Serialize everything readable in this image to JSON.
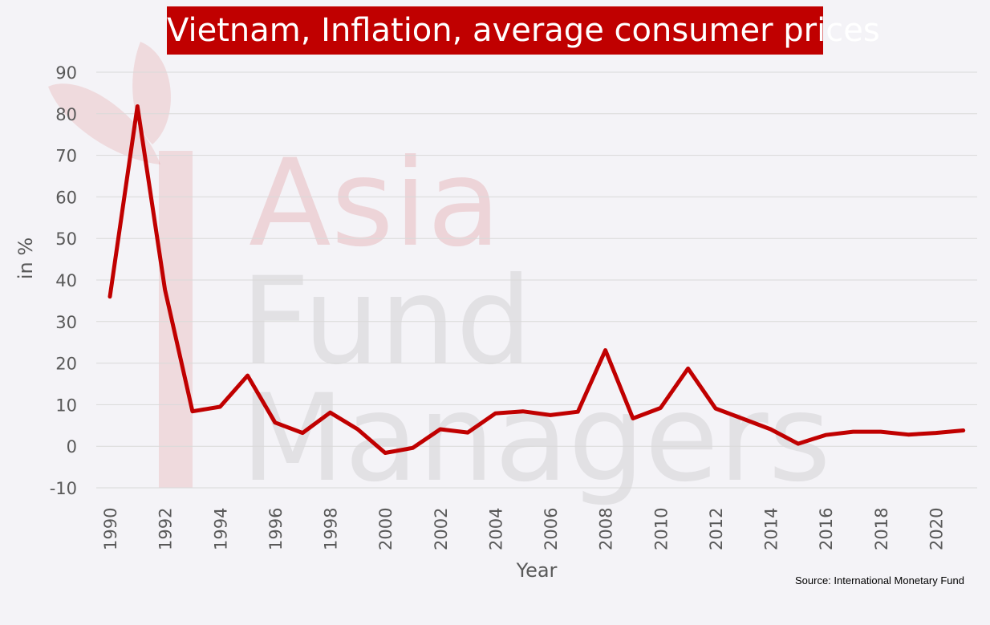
{
  "chart_data": {
    "type": "line",
    "title": "Vietnam, Inflation, average consumer prices",
    "xlabel": "Year",
    "ylabel": "in %",
    "ylim": [
      -10,
      90
    ],
    "yticks": [
      -10,
      0,
      10,
      20,
      30,
      40,
      50,
      60,
      70,
      80,
      90
    ],
    "xticks": [
      1990,
      1992,
      1994,
      1996,
      1998,
      2000,
      2002,
      2004,
      2006,
      2008,
      2010,
      2012,
      2014,
      2016,
      2018,
      2020
    ],
    "grid": true,
    "series": [
      {
        "color": "#c00000",
        "x": [
          1990,
          1991,
          1992,
          1993,
          1994,
          1995,
          1996,
          1997,
          1998,
          1999,
          2000,
          2001,
          2002,
          2003,
          2004,
          2005,
          2006,
          2007,
          2008,
          2009,
          2010,
          2011,
          2012,
          2013,
          2014,
          2015,
          2016,
          2017,
          2018,
          2019,
          2020,
          2021
        ],
        "values": [
          36,
          81.8,
          37.7,
          8.4,
          9.5,
          17,
          5.7,
          3.2,
          8.1,
          4.1,
          -1.6,
          -0.4,
          4.1,
          3.3,
          7.9,
          8.4,
          7.5,
          8.3,
          23.1,
          6.7,
          9.2,
          18.7,
          9.1,
          6.6,
          4.1,
          0.6,
          2.7,
          3.5,
          3.5,
          2.8,
          3.2,
          3.8
        ]
      }
    ],
    "source": "Source: International Monetary Fund"
  },
  "watermark": {
    "lines": [
      "Asia",
      "Fund",
      "Managers"
    ]
  },
  "colors": {
    "line": "#c00000",
    "title_bg": "#c00000",
    "background": "#f4f3f7"
  }
}
